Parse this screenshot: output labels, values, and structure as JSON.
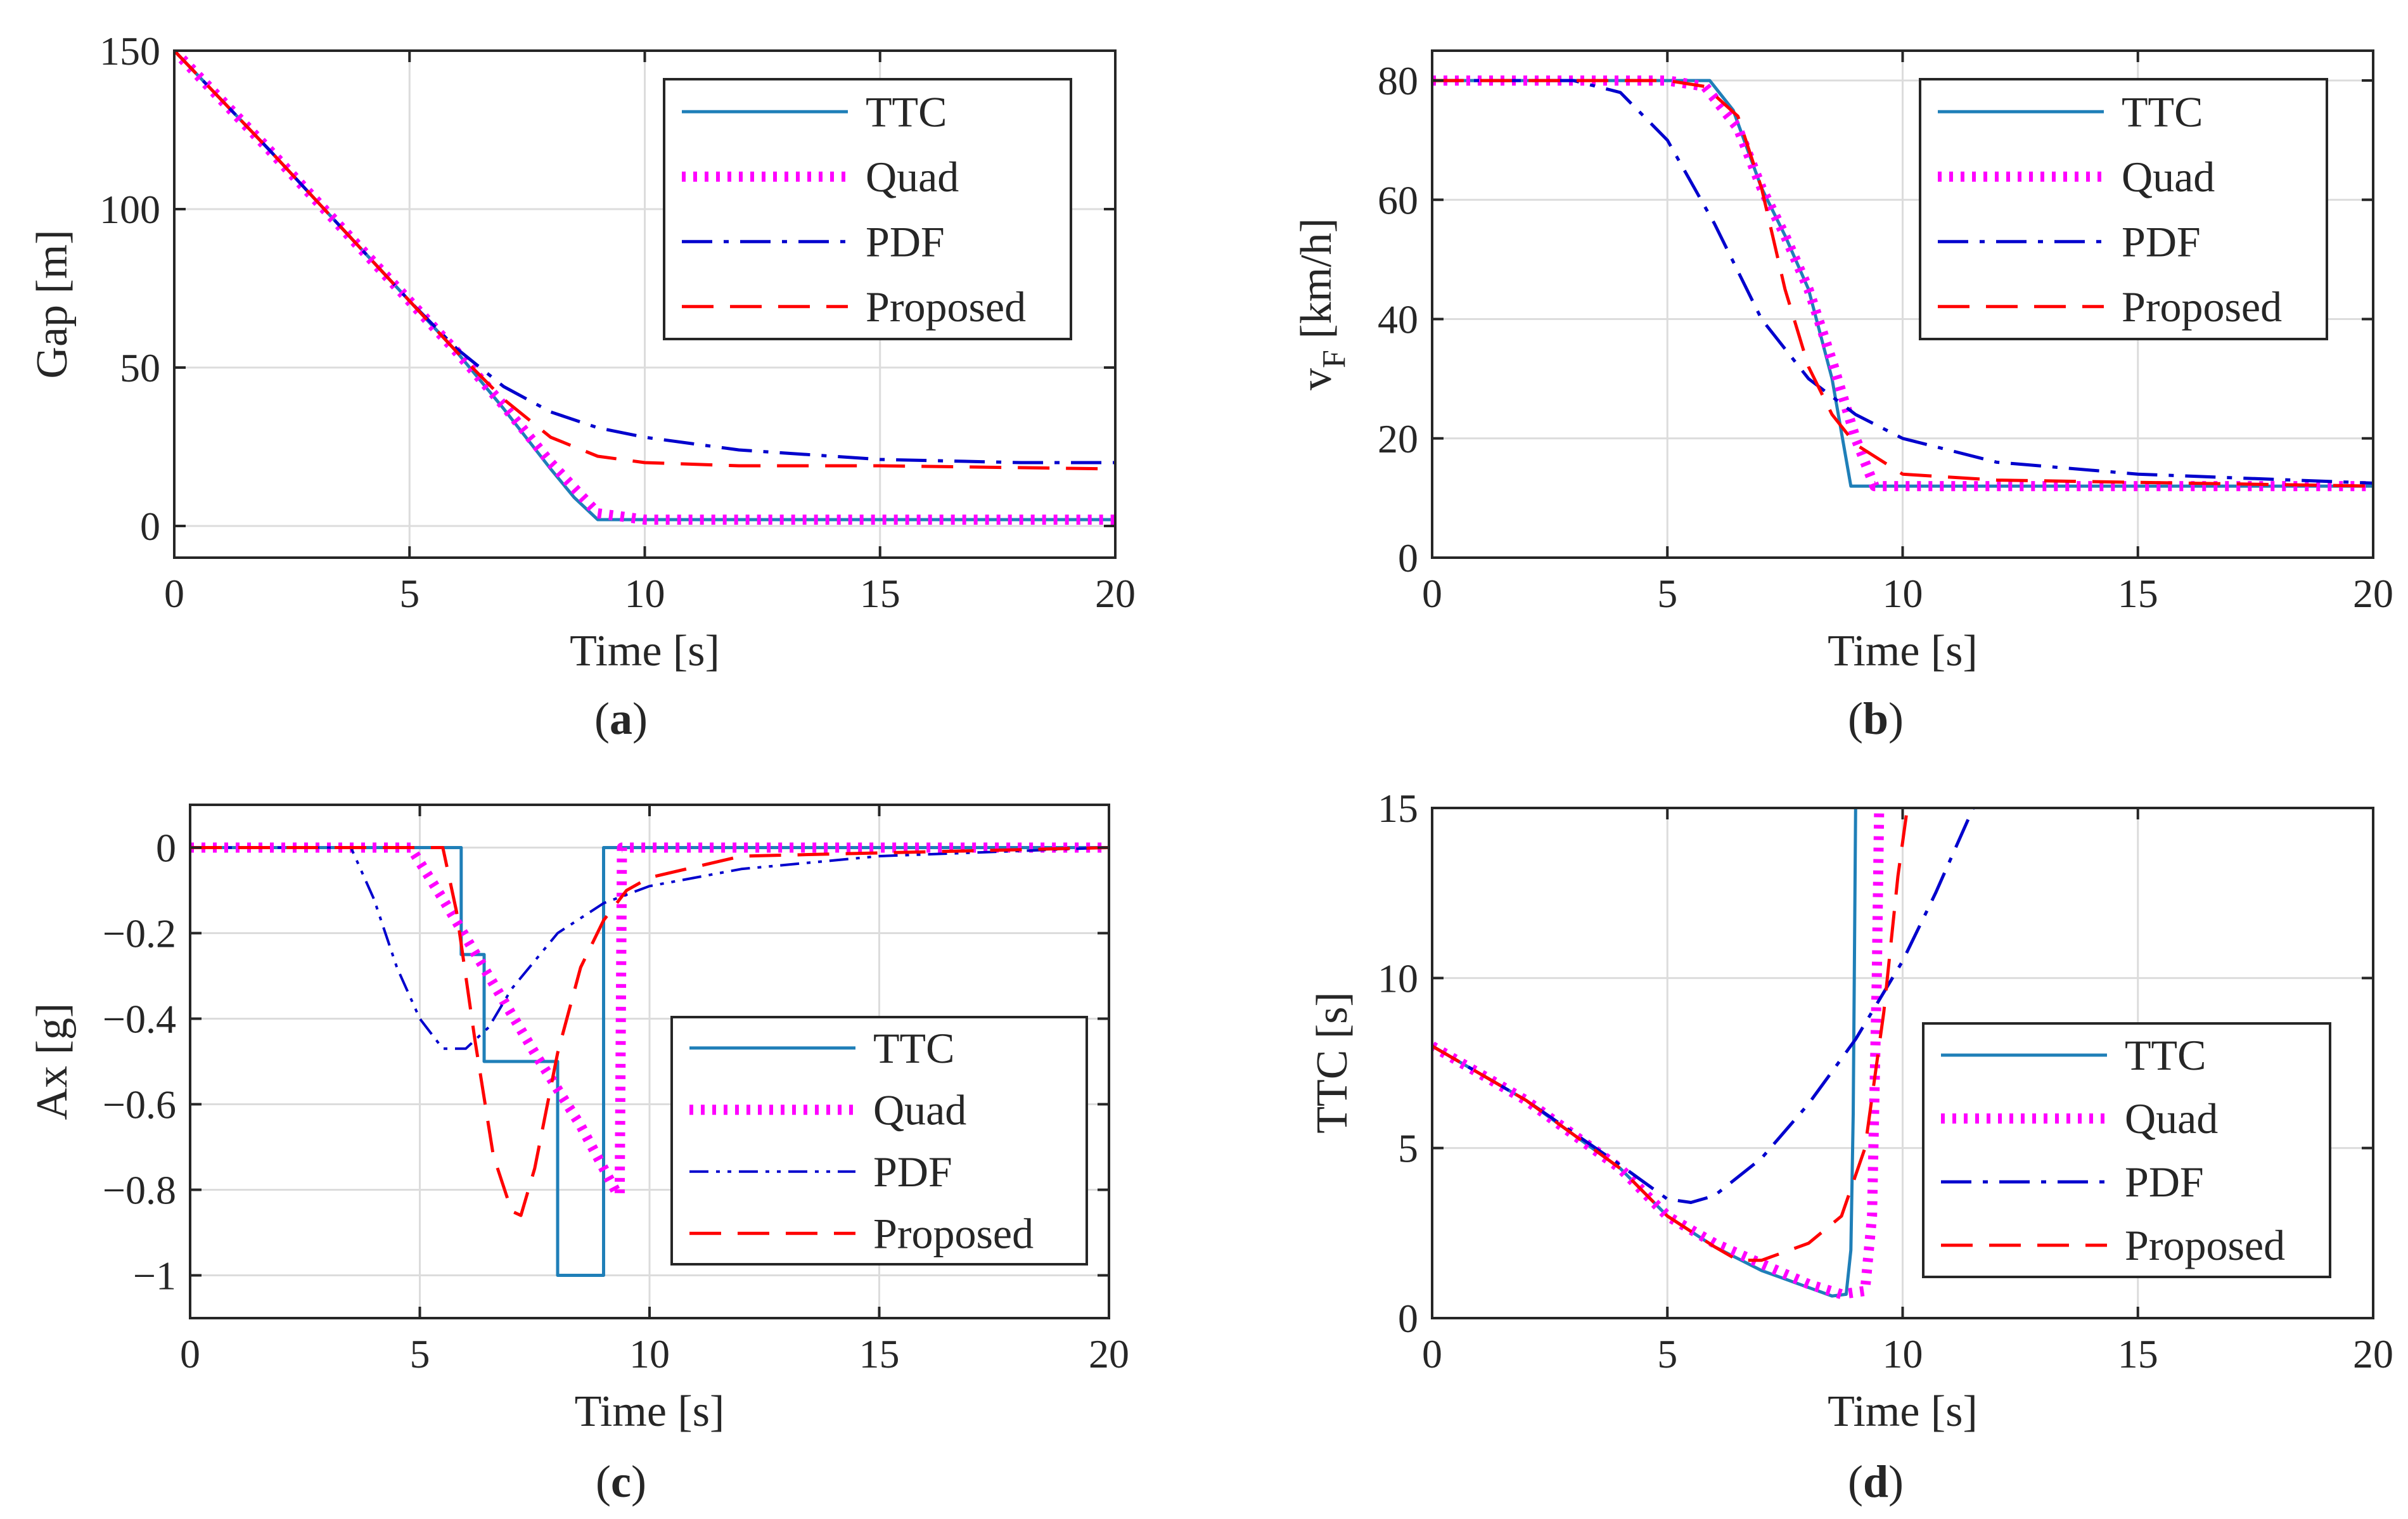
{
  "colors": {
    "TTC": "#1f7fb8",
    "Quad": "#ff00ff",
    "PDF": "#0000cd",
    "Proposed": "#ff0000"
  },
  "chart_data": [
    {
      "id": "a",
      "type": "line",
      "panel_label": "a",
      "xlabel": "Time [s]",
      "ylabel": "Gap [m]",
      "xlim": [
        0,
        20
      ],
      "ylim": [
        -10,
        150
      ],
      "xticks": [
        0,
        5,
        10,
        15,
        20
      ],
      "yticks": [
        0,
        50,
        100,
        150
      ],
      "grid": true,
      "legend_position": "top-right",
      "series": [
        {
          "name": "TTC",
          "style": "solid",
          "x": [
            0,
            2,
            4,
            5,
            6,
            7,
            8,
            8.5,
            9,
            10,
            12,
            15,
            20
          ],
          "y": [
            150,
            119,
            87,
            71,
            55,
            37,
            18,
            9,
            2,
            2,
            2,
            2,
            2
          ]
        },
        {
          "name": "Quad",
          "style": "dotted",
          "x": [
            0,
            2,
            4,
            5,
            6,
            7,
            8,
            9,
            10,
            12,
            15,
            20
          ],
          "y": [
            150,
            119,
            87,
            71,
            55,
            38,
            20,
            4,
            2,
            2,
            2,
            2
          ]
        },
        {
          "name": "PDF",
          "style": "dashdot",
          "x": [
            0,
            2,
            4,
            5,
            6,
            7,
            8,
            9,
            10,
            12,
            15,
            18,
            20
          ],
          "y": [
            150,
            119,
            87,
            71,
            56,
            44,
            36,
            31,
            28,
            24,
            21,
            20,
            20
          ]
        },
        {
          "name": "Proposed",
          "style": "dashed",
          "x": [
            0,
            2,
            4,
            5,
            6,
            7,
            8,
            9,
            10,
            12,
            15,
            20
          ],
          "y": [
            150,
            119,
            87,
            71,
            55,
            40,
            28,
            22,
            20,
            19,
            19,
            18
          ]
        }
      ]
    },
    {
      "id": "b",
      "type": "line",
      "panel_label": "b",
      "xlabel": "Time [s]",
      "ylabel_main": "v",
      "ylabel_sub": "F",
      "ylabel_unit": " [km/h]",
      "xlim": [
        0,
        20
      ],
      "ylim": [
        0,
        85
      ],
      "xticks": [
        0,
        5,
        10,
        15,
        20
      ],
      "yticks": [
        0,
        20,
        40,
        60,
        80
      ],
      "grid": true,
      "legend_position": "top-right",
      "series": [
        {
          "name": "TTC",
          "style": "solid",
          "x": [
            0,
            5.9,
            6.4,
            7,
            7.5,
            8,
            8.5,
            8.9,
            9,
            12,
            20
          ],
          "y": [
            80,
            80,
            75,
            62,
            54,
            45,
            30,
            12,
            12,
            12,
            12
          ]
        },
        {
          "name": "Quad",
          "style": "dotted",
          "x": [
            0,
            5,
            5.8,
            6.5,
            7,
            7.5,
            8,
            8.5,
            9,
            9.4,
            10,
            20
          ],
          "y": [
            80,
            80,
            79,
            72,
            62,
            54,
            45,
            33,
            20,
            12,
            12,
            12
          ]
        },
        {
          "name": "PDF",
          "style": "dashdot",
          "x": [
            0,
            3,
            4,
            5,
            6,
            7,
            8,
            9,
            10,
            12,
            15,
            20
          ],
          "y": [
            80,
            80,
            78,
            70,
            56,
            40,
            30,
            24,
            20,
            16,
            14,
            12.5
          ]
        },
        {
          "name": "Proposed",
          "style": "dashed",
          "x": [
            0,
            5,
            5.8,
            6.5,
            7,
            7.5,
            8,
            8.5,
            9,
            10,
            12,
            20
          ],
          "y": [
            80,
            80,
            79,
            74,
            62,
            45,
            32,
            24,
            19,
            14,
            13,
            12
          ]
        }
      ]
    },
    {
      "id": "c",
      "type": "line",
      "panel_label": "c",
      "xlabel": "Time [s]",
      "ylabel": "Ax [g]",
      "xlim": [
        0,
        20
      ],
      "ylim": [
        -1.1,
        0.1
      ],
      "xticks": [
        0,
        5,
        10,
        15,
        20
      ],
      "yticks": [
        -1,
        -0.8,
        -0.6,
        -0.4,
        -0.2,
        0
      ],
      "ytick_labels": [
        "−1",
        "−0.8",
        "−0.6",
        "−0.4",
        "−0.2",
        "0"
      ],
      "grid": true,
      "legend_position": "bottom-right",
      "series": [
        {
          "name": "TTC",
          "style": "solid",
          "x": [
            0,
            5.9,
            5.9,
            6.4,
            6.4,
            8,
            8,
            9,
            9,
            20
          ],
          "y": [
            0,
            0,
            -0.25,
            -0.25,
            -0.5,
            -0.5,
            -1,
            -1,
            0,
            0
          ]
        },
        {
          "name": "Quad",
          "style": "dotted",
          "x": [
            0,
            4.8,
            5.5,
            6.5,
            7.5,
            8.5,
            9.3,
            9.35,
            9.4,
            20
          ],
          "y": [
            0,
            0,
            -0.12,
            -0.3,
            -0.48,
            -0.65,
            -0.81,
            -0.81,
            0,
            0
          ]
        },
        {
          "name": "PDF",
          "style": "dashdotdot",
          "x": [
            0,
            3.5,
            4,
            4.5,
            5,
            5.5,
            6,
            6.5,
            7,
            8,
            9,
            10,
            12,
            15,
            20
          ],
          "y": [
            0,
            0,
            -0.12,
            -0.28,
            -0.4,
            -0.47,
            -0.47,
            -0.42,
            -0.33,
            -0.2,
            -0.13,
            -0.09,
            -0.05,
            -0.02,
            0
          ]
        },
        {
          "name": "Proposed",
          "style": "dashed",
          "x": [
            0,
            5.5,
            5.8,
            6.2,
            6.6,
            7,
            7.2,
            7.5,
            8,
            8.5,
            9,
            9.5,
            10,
            12,
            20
          ],
          "y": [
            0,
            0,
            -0.15,
            -0.45,
            -0.72,
            -0.85,
            -0.86,
            -0.75,
            -0.48,
            -0.28,
            -0.17,
            -0.1,
            -0.07,
            -0.02,
            0
          ]
        }
      ]
    },
    {
      "id": "d",
      "type": "line",
      "panel_label": "d",
      "xlabel": "Time [s]",
      "ylabel": "TTC [s]",
      "xlim": [
        0,
        20
      ],
      "ylim": [
        0,
        15
      ],
      "xticks": [
        0,
        5,
        10,
        15,
        20
      ],
      "yticks": [
        0,
        5,
        10,
        15
      ],
      "grid": true,
      "legend_position": "bottom-right",
      "series": [
        {
          "name": "TTC",
          "style": "solid",
          "x": [
            0,
            2,
            4,
            5,
            6,
            7,
            8,
            8.5,
            8.8,
            8.9,
            8.95,
            9
          ],
          "y": [
            8,
            6.4,
            4.4,
            3,
            2.1,
            1.4,
            0.9,
            0.65,
            0.7,
            2,
            6,
            15
          ]
        },
        {
          "name": "Quad",
          "style": "dotted",
          "x": [
            0,
            2,
            4,
            5,
            6,
            7,
            8,
            8.7,
            9.2,
            9.35,
            9.45,
            9.5
          ],
          "y": [
            8,
            6.4,
            4.4,
            3,
            2.2,
            1.6,
            1,
            0.7,
            0.8,
            3,
            10,
            15
          ]
        },
        {
          "name": "PDF",
          "style": "dashdot",
          "x": [
            0,
            2,
            4,
            5,
            5.5,
            6,
            7,
            8,
            9,
            10,
            10.7,
            11.5
          ],
          "y": [
            8,
            6.4,
            4.5,
            3.5,
            3.4,
            3.6,
            4.7,
            6.3,
            8.2,
            10.5,
            12.5,
            15
          ]
        },
        {
          "name": "Proposed",
          "style": "dashed",
          "x": [
            0,
            2,
            4,
            5,
            6,
            6.5,
            7,
            8,
            8.7,
            9.2,
            9.6,
            9.9,
            10.1
          ],
          "y": [
            8,
            6.4,
            4.4,
            3,
            2.1,
            1.7,
            1.7,
            2.2,
            3,
            5,
            9,
            13,
            15
          ]
        }
      ]
    }
  ]
}
